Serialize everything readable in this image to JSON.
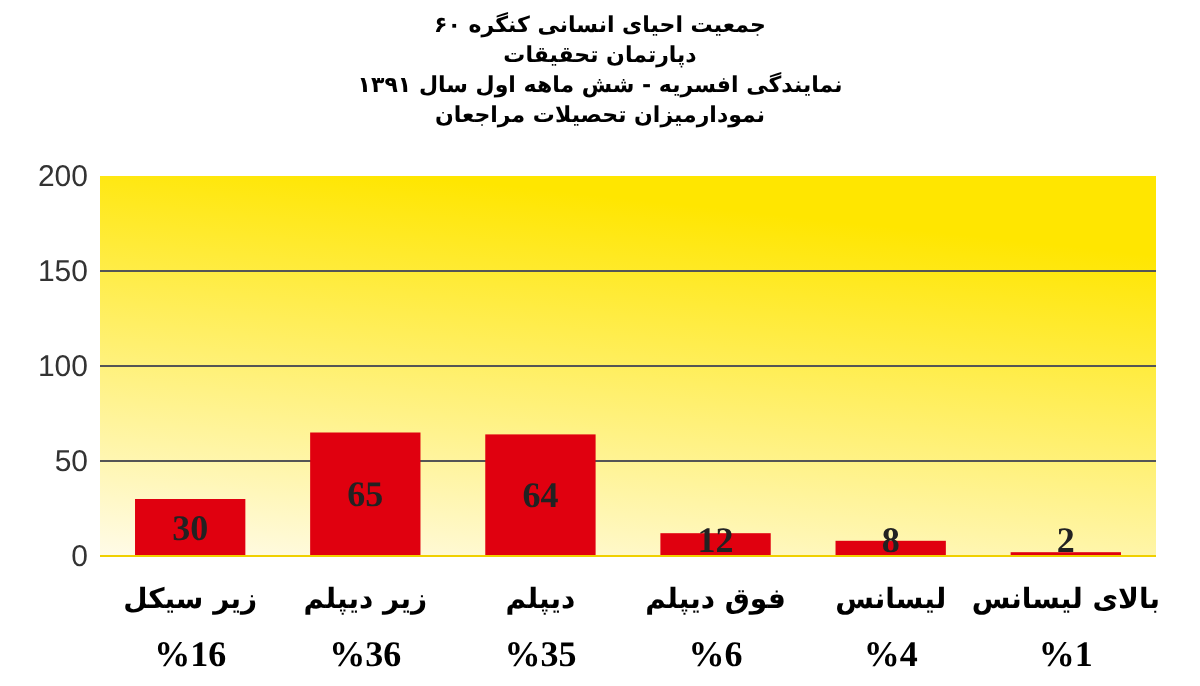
{
  "chart_data": {
    "type": "bar",
    "title": "جمعیت احیای انسانی کنگره ۶۰\nدپارتمان تحقیقات\nنمایندگی افسریه - شش ماهه اول سال ۱۳۹۱\nنمودارمیزان تحصیلات مراجعان",
    "categories": [
      "زیر سیکل",
      "زیر دیپلم",
      "دیپلم",
      "فوق دیپلم",
      "لیسانس",
      "بالای لیسانس"
    ],
    "annotations": [
      "%16",
      "%36",
      "%35",
      "%6",
      "%4",
      "%1"
    ],
    "values": [
      30,
      65,
      64,
      12,
      8,
      2
    ],
    "color": "#e0000f",
    "ylim": [
      0,
      200
    ],
    "yticks": [
      0,
      50,
      100,
      150,
      200
    ],
    "grid": true,
    "data_labels": true
  }
}
